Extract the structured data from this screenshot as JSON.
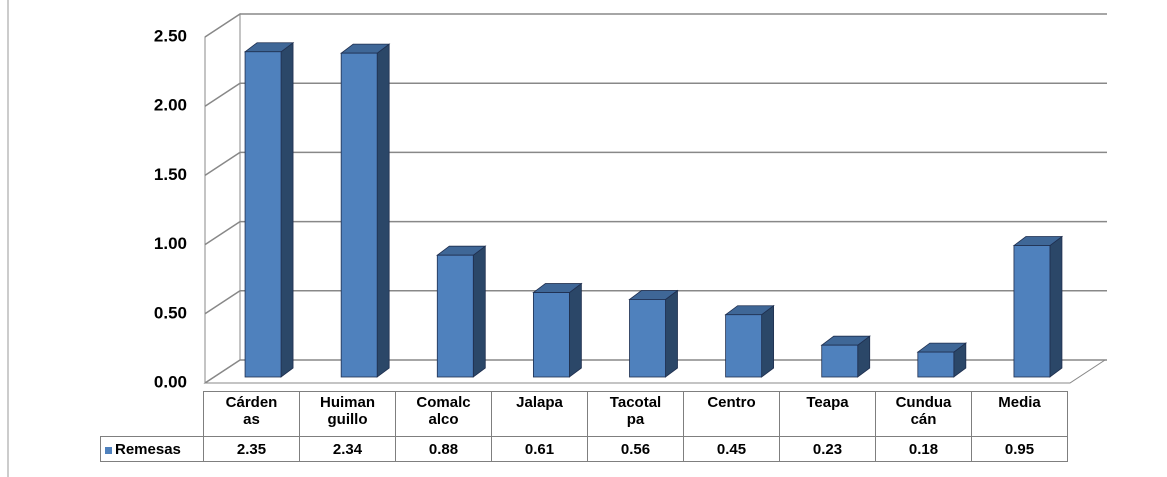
{
  "chart_data": {
    "type": "bar3d",
    "categories": [
      "Cárdenas",
      "Huimanguillo",
      "Comalcalco",
      "Jalapa",
      "Tacotalpa",
      "Centro",
      "Teapa",
      "Cunduacán",
      "Media"
    ],
    "series": [
      {
        "name": "Remesas",
        "color": "#4f81bd",
        "values": [
          2.35,
          2.34,
          0.88,
          0.61,
          0.56,
          0.45,
          0.23,
          0.18,
          0.95
        ]
      }
    ],
    "ylim": [
      0,
      2.5
    ],
    "yticks": [
      {
        "value": 0,
        "label": "0.00"
      },
      {
        "value": 0.5,
        "label": "0.50"
      },
      {
        "value": 1,
        "label": "1.00"
      },
      {
        "value": 1.5,
        "label": "1.50"
      },
      {
        "value": 2,
        "label": "2.00"
      },
      {
        "value": 2.5,
        "label": "2.50"
      }
    ],
    "grid": true
  }
}
